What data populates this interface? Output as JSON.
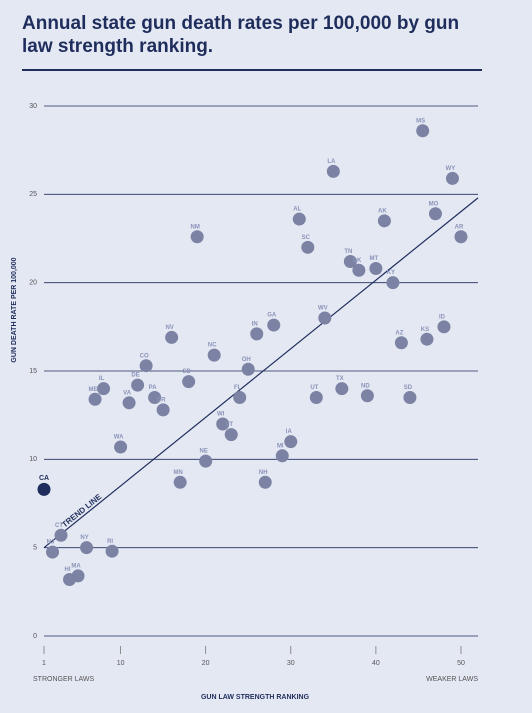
{
  "chart_data": {
    "type": "scatter",
    "title": "Annual state gun death rates per 100,000 by gun law strength ranking.",
    "x_label": "GUN LAW STRENGTH RANKING",
    "y_label": "GUN DEATH RATE PER 100,000",
    "x_left_note": "STRONGER LAWS",
    "x_right_note": "WEAKER LAWS",
    "xlim": [
      1,
      52
    ],
    "ylim": [
      0,
      30
    ],
    "xticks": [
      1,
      10,
      20,
      30,
      40,
      50
    ],
    "yticks": [
      0,
      5,
      10,
      15,
      20,
      25,
      30
    ],
    "grid": true,
    "color": "#7b82a3",
    "points": {
      "labels": [
        "MS",
        "LA",
        "WY",
        "AL",
        "AK",
        "MO",
        "AR",
        "NM",
        "SC",
        "TN",
        "OK",
        "MT",
        "KY",
        "WV",
        "ID",
        "KS",
        "AZ",
        "GA",
        "IN",
        "NV",
        "NC",
        "OH",
        "CO",
        "DE",
        "SD",
        "IL",
        "ME",
        "VA",
        "PA",
        "OR",
        "FL",
        "UT",
        "TX",
        "ND",
        "SD",
        "WI",
        "VT",
        "IA",
        "MI",
        "WA",
        "NE",
        "MN",
        "NH",
        "CT",
        "NJ",
        "NY",
        "RI",
        "MA",
        "HI"
      ],
      "x": [
        45.5,
        35,
        49,
        31,
        41,
        47,
        50,
        19,
        32,
        37,
        38,
        40,
        42,
        34,
        48,
        46,
        43,
        28,
        26,
        16,
        21,
        25,
        13,
        12,
        18,
        8,
        7,
        11,
        14,
        15,
        24,
        33,
        36,
        39,
        44,
        22,
        23,
        30,
        29,
        10,
        20,
        17,
        27,
        3,
        2,
        6,
        9,
        5,
        4
      ],
      "y": [
        28.6,
        26.3,
        25.9,
        23.6,
        23.5,
        23.9,
        22.6,
        22.6,
        22.0,
        21.2,
        20.7,
        20.8,
        20.0,
        18.0,
        17.5,
        16.8,
        16.6,
        17.6,
        17.1,
        16.9,
        15.9,
        15.1,
        15.3,
        14.2,
        14.4,
        14.0,
        13.4,
        13.2,
        13.5,
        12.8,
        13.5,
        13.5,
        14.0,
        13.6,
        13.5,
        12.0,
        11.4,
        11.0,
        10.2,
        10.7,
        9.9,
        8.7,
        8.7,
        5.7,
        4.75,
        5.0,
        4.8,
        3.4,
        3.2
      ]
    },
    "highlight": {
      "label": "CA",
      "x": 1,
      "y": 8.3,
      "color": "#1f2d5c"
    },
    "trend_line": {
      "label": "TREND LINE",
      "x": [
        1,
        52
      ],
      "y": [
        5,
        24.8
      ],
      "color": "#1f2d5c"
    }
  }
}
